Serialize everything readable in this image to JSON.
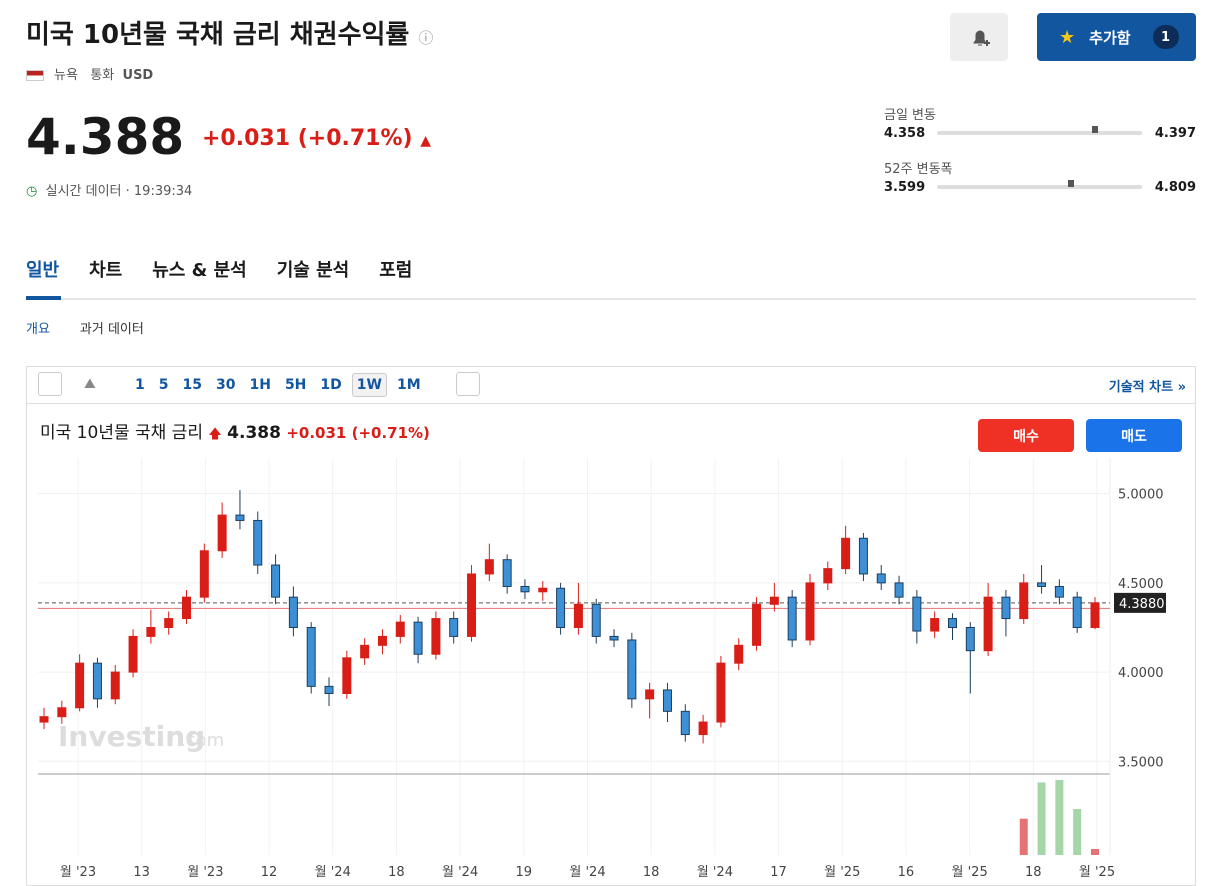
{
  "header": {
    "title": "미국 10년물 국채 금리 채권수익률",
    "place": "뉴욕",
    "currency_label": "통화",
    "currency": "USD"
  },
  "quote": {
    "price": 4.388,
    "change": "+0.031",
    "change_pct": "(+0.71%)",
    "status": "실시간 데이터 · 19:39:34"
  },
  "ranges": [
    {
      "label": "금일 변동",
      "low": 4.358,
      "high": 4.397
    },
    {
      "label": "52주 변동폭",
      "low": 3.599,
      "high": 4.809
    }
  ],
  "buttons": {
    "add": "추가함",
    "count": 1
  },
  "tabs": [
    "일반",
    "차트",
    "뉴스 & 분석",
    "기술 분석",
    "포럼"
  ],
  "subtabs": [
    "개요",
    "과거 데이터"
  ],
  "toolbar": {
    "intervals": [
      "1",
      "5",
      "15",
      "30",
      "1H",
      "5H",
      "1D",
      "1W",
      "1M"
    ],
    "selected": 7,
    "link": "기술적 차트 »"
  },
  "chart_data": {
    "type": "candlestick",
    "title": "미국 10년물 국채 금리",
    "price": 4.388,
    "change": "+0.031",
    "change_pct": "(+0.71%)",
    "buy": "매수",
    "sell": "매도",
    "watermark": "Investing",
    "watermark_suffix": ".com",
    "up_color": "#d91e18",
    "down_color": "#3d8fd6",
    "volume_up_color": "#e57373",
    "volume_down_color": "#a5d6a7",
    "ylim": [
      3.44,
      5.2
    ],
    "yticks": [
      {
        "value": 3.5,
        "label": "3.5000"
      },
      {
        "value": 4,
        "label": "4.0000"
      },
      {
        "value": 4.5,
        "label": "4.5000"
      },
      {
        "value": 5,
        "label": "5.0000"
      }
    ],
    "last": {
      "value": 4.388,
      "label": "4.3880"
    },
    "previous_close": 4.357,
    "x_labels": [
      "월 '23",
      "13",
      "월 '23",
      "12",
      "월 '24",
      "18",
      "월 '24",
      "19",
      "월 '24",
      "18",
      "월 '24",
      "17",
      "월 '25",
      "16",
      "월 '25",
      "18",
      "월 '25"
    ],
    "candles": [
      [
        3.72,
        3.8,
        3.68,
        3.75
      ],
      [
        3.75,
        3.84,
        3.71,
        3.8
      ],
      [
        3.8,
        4.1,
        3.78,
        4.05
      ],
      [
        4.05,
        4.08,
        3.8,
        3.85
      ],
      [
        3.85,
        4.04,
        3.82,
        4.0
      ],
      [
        4.0,
        4.24,
        3.97,
        4.2
      ],
      [
        4.2,
        4.35,
        4.16,
        4.25
      ],
      [
        4.25,
        4.34,
        4.21,
        4.3
      ],
      [
        4.3,
        4.46,
        4.27,
        4.42
      ],
      [
        4.42,
        4.72,
        4.39,
        4.68
      ],
      [
        4.68,
        4.95,
        4.64,
        4.88
      ],
      [
        4.88,
        5.02,
        4.8,
        4.85
      ],
      [
        4.85,
        4.9,
        4.55,
        4.6
      ],
      [
        4.6,
        4.66,
        4.38,
        4.42
      ],
      [
        4.42,
        4.48,
        4.2,
        4.25
      ],
      [
        4.25,
        4.28,
        3.88,
        3.92
      ],
      [
        3.92,
        3.97,
        3.81,
        3.88
      ],
      [
        3.88,
        4.12,
        3.85,
        4.08
      ],
      [
        4.08,
        4.19,
        4.04,
        4.15
      ],
      [
        4.15,
        4.24,
        4.1,
        4.2
      ],
      [
        4.2,
        4.32,
        4.16,
        4.28
      ],
      [
        4.28,
        4.31,
        4.05,
        4.1
      ],
      [
        4.1,
        4.34,
        4.07,
        4.3
      ],
      [
        4.3,
        4.34,
        4.16,
        4.2
      ],
      [
        4.2,
        4.6,
        4.17,
        4.55
      ],
      [
        4.55,
        4.72,
        4.51,
        4.63
      ],
      [
        4.63,
        4.66,
        4.44,
        4.48
      ],
      [
        4.48,
        4.52,
        4.41,
        4.45
      ],
      [
        4.45,
        4.51,
        4.4,
        4.47
      ],
      [
        4.47,
        4.5,
        4.21,
        4.25
      ],
      [
        4.25,
        4.5,
        4.21,
        4.38
      ],
      [
        4.38,
        4.41,
        4.16,
        4.2
      ],
      [
        4.2,
        4.24,
        4.14,
        4.18
      ],
      [
        4.18,
        4.22,
        3.8,
        3.85
      ],
      [
        3.85,
        3.94,
        3.74,
        3.9
      ],
      [
        3.9,
        3.94,
        3.72,
        3.78
      ],
      [
        3.78,
        3.82,
        3.61,
        3.65
      ],
      [
        3.65,
        3.76,
        3.6,
        3.72
      ],
      [
        3.72,
        4.09,
        3.69,
        4.05
      ],
      [
        4.05,
        4.19,
        4.01,
        4.15
      ],
      [
        4.15,
        4.42,
        4.12,
        4.38
      ],
      [
        4.38,
        4.5,
        4.34,
        4.42
      ],
      [
        4.42,
        4.46,
        4.14,
        4.18
      ],
      [
        4.18,
        4.55,
        4.15,
        4.5
      ],
      [
        4.5,
        4.62,
        4.46,
        4.58
      ],
      [
        4.58,
        4.82,
        4.55,
        4.75
      ],
      [
        4.75,
        4.78,
        4.51,
        4.55
      ],
      [
        4.55,
        4.6,
        4.46,
        4.5
      ],
      [
        4.5,
        4.54,
        4.38,
        4.42
      ],
      [
        4.42,
        4.46,
        4.16,
        4.23
      ],
      [
        4.23,
        4.34,
        4.19,
        4.3
      ],
      [
        4.3,
        4.33,
        4.18,
        4.25
      ],
      [
        4.25,
        4.28,
        3.88,
        4.12
      ],
      [
        4.12,
        4.5,
        4.09,
        4.42
      ],
      [
        4.42,
        4.46,
        4.2,
        4.3
      ],
      [
        4.3,
        4.55,
        4.27,
        4.5
      ],
      [
        4.5,
        4.6,
        4.44,
        4.48
      ],
      [
        4.48,
        4.52,
        4.38,
        4.42
      ],
      [
        4.42,
        4.45,
        4.22,
        4.25
      ],
      [
        4.25,
        4.42,
        4.24,
        4.388
      ]
    ],
    "volume": [
      null,
      null,
      null,
      null,
      null,
      null,
      null,
      null,
      null,
      null,
      null,
      null,
      null,
      null,
      null,
      null,
      null,
      null,
      null,
      null,
      null,
      null,
      null,
      null,
      null,
      null,
      null,
      null,
      null,
      null,
      null,
      null,
      null,
      null,
      null,
      null,
      null,
      null,
      null,
      null,
      null,
      null,
      null,
      null,
      null,
      null,
      null,
      null,
      null,
      null,
      null,
      null,
      null,
      null,
      null,
      30,
      60,
      62,
      38,
      5
    ]
  }
}
